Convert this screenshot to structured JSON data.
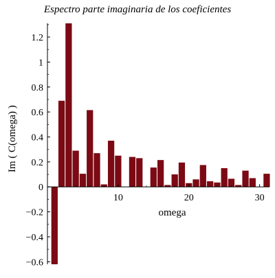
{
  "chart_data": {
    "type": "bar",
    "title": "Espectro parte imaginaria de los coeficientes",
    "xlabel": "omega",
    "ylabel": "Im ( C(omega) )",
    "xlim": [
      0,
      31.4
    ],
    "ylim": [
      -0.62,
      1.31
    ],
    "x_ticks": [
      10,
      20,
      30
    ],
    "y_ticks": [
      -0.6,
      -0.4,
      -0.2,
      0,
      0.2,
      0.4,
      0.6,
      0.8,
      1,
      1.2
    ],
    "y_tick_labels": [
      "−0.6",
      "−0.4",
      "−0.2",
      "0",
      "0.2",
      "0.4",
      "0.6",
      "0.8",
      "1",
      "1.2"
    ],
    "bar_width": 0.9,
    "x": [
      1,
      2,
      3,
      4,
      5,
      6,
      7,
      8,
      9,
      10,
      11,
      12,
      13,
      14,
      15,
      16,
      17,
      18,
      19,
      20,
      21,
      22,
      23,
      24,
      25,
      26,
      27,
      28,
      29,
      30,
      31
    ],
    "values": [
      -0.62,
      0.69,
      1.31,
      0.29,
      0.105,
      0.615,
      0.27,
      0.02,
      0.37,
      0.25,
      0.0,
      0.24,
      0.23,
      0.0,
      0.155,
      0.215,
      0.015,
      0.1,
      0.195,
      0.03,
      0.06,
      0.175,
      0.045,
      0.035,
      0.15,
      0.065,
      0.015,
      0.13,
      0.07,
      0.0,
      0.105
    ],
    "bar_color": "#7b0a14",
    "grid": false
  }
}
